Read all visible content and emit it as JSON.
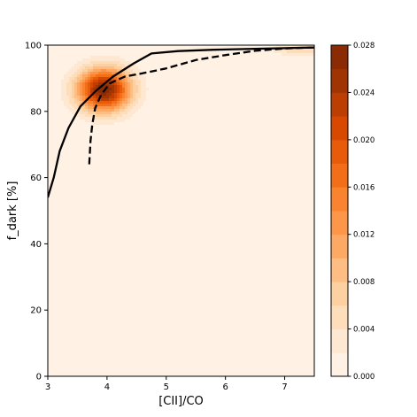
{
  "chart_data": {
    "type": "heatmap",
    "xlabel": "[CII]/CO",
    "ylabel": "f_dark [%]",
    "xlim": [
      3,
      7.5
    ],
    "ylim": [
      0,
      100
    ],
    "x_ticks": [
      "3",
      "4",
      "5",
      "6",
      "7"
    ],
    "y_ticks": [
      "0",
      "20",
      "40",
      "60",
      "80",
      "100"
    ],
    "density": {
      "colormap": "Oranges",
      "levels": 14,
      "vmin": 0,
      "vmax": 0.028,
      "peaks": [
        {
          "x": 3.95,
          "y": 86.5,
          "sx": 0.32,
          "sy": 4.6,
          "amplitude": 0.0275
        },
        {
          "x": 7.3,
          "y": 98.6,
          "sx": 0.35,
          "sy": 1.3,
          "amplitude": 0.006
        }
      ]
    },
    "series": [
      {
        "style": "solid",
        "color": "#000000",
        "x": [
          3.0,
          3.1,
          3.2,
          3.35,
          3.55,
          3.8,
          4.1,
          4.45,
          4.75,
          5.2,
          5.8,
          6.5,
          7.0,
          7.5
        ],
        "y": [
          54,
          60,
          68,
          75,
          81.5,
          86,
          90.5,
          94.5,
          97.5,
          98.2,
          98.6,
          98.9,
          99.1,
          99.3
        ]
      },
      {
        "style": "dashed",
        "color": "#000000",
        "x": [
          3.7,
          3.72,
          3.75,
          3.8,
          3.9,
          4.05,
          4.3,
          4.6,
          5.0,
          5.5,
          6.0,
          6.5,
          7.0,
          7.5
        ],
        "y": [
          64,
          71,
          76,
          81,
          85,
          88.5,
          90.5,
          91.5,
          93,
          95.5,
          97,
          98.3,
          99,
          99.3
        ]
      }
    ],
    "colorbar": {
      "ticks": [
        "0.000",
        "0.004",
        "0.008",
        "0.012",
        "0.016",
        "0.020",
        "0.024",
        "0.028"
      ]
    }
  }
}
